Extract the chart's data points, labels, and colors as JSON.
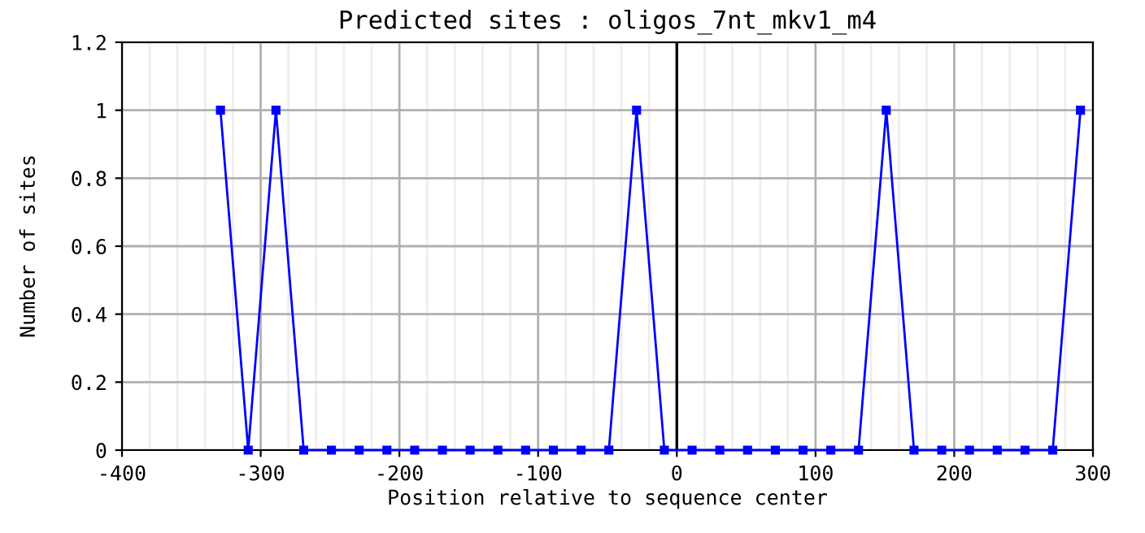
{
  "chart_data": {
    "type": "line",
    "title": "Predicted sites : oligos_7nt_mkv1_m4",
    "xlabel": "Position relative to sequence center",
    "ylabel": "Number of sites",
    "x": [
      -329,
      -309,
      -289,
      -269,
      -249,
      -229,
      -209,
      -189,
      -169,
      -149,
      -129,
      -109,
      -89,
      -69,
      -49,
      -29,
      -9,
      11,
      31,
      51,
      71,
      91,
      111,
      131,
      151,
      171,
      191,
      211,
      231,
      251,
      271,
      291
    ],
    "series": [
      {
        "color": "#0000ff",
        "values": [
          1,
          0,
          1,
          0,
          0,
          0,
          0,
          0,
          0,
          0,
          0,
          0,
          0,
          0,
          0,
          1,
          0,
          0,
          0,
          0,
          0,
          0,
          0,
          0,
          1,
          0,
          0,
          0,
          0,
          0,
          0,
          1
        ]
      }
    ],
    "xlim": [
      -400,
      300
    ],
    "ylim": [
      0,
      1.2
    ],
    "xticks": [
      -400,
      {
        "value": -380,
        "label": null
      },
      {
        "value": -360,
        "label": null
      },
      {
        "value": -340,
        "label": null
      },
      {
        "value": -320,
        "label": null
      },
      -300,
      {
        "value": -280,
        "label": null
      },
      {
        "value": -260,
        "label": null
      },
      {
        "value": -240,
        "label": null
      },
      {
        "value": -220,
        "label": null
      },
      -200,
      {
        "value": -180,
        "label": null
      },
      {
        "value": -160,
        "label": null
      },
      {
        "value": -140,
        "label": null
      },
      {
        "value": -120,
        "label": null
      },
      -100,
      {
        "value": -80,
        "label": null
      },
      {
        "value": -60,
        "label": null
      },
      {
        "value": -40,
        "label": null
      },
      {
        "value": -20,
        "label": null
      },
      0,
      {
        "value": 20,
        "label": null
      },
      {
        "value": 40,
        "label": null
      },
      {
        "value": 60,
        "label": null
      },
      {
        "value": 80,
        "label": null
      },
      100,
      {
        "value": 120,
        "label": null
      },
      {
        "value": 140,
        "label": null
      },
      {
        "value": 160,
        "label": null
      },
      {
        "value": 180,
        "label": null
      },
      200,
      {
        "value": 220,
        "label": null
      },
      {
        "value": 240,
        "label": null
      },
      {
        "value": 260,
        "label": null
      },
      {
        "value": 280,
        "label": null
      },
      300
    ],
    "yticks": [
      0,
      0.2,
      0.4,
      0.6,
      0.8,
      1,
      1.2
    ],
    "ref_lines": [
      {
        "axis": "x",
        "value": 0,
        "color": "#000000"
      }
    ],
    "grid": true,
    "marker": "square",
    "line_style": "solid",
    "legend": false
  }
}
